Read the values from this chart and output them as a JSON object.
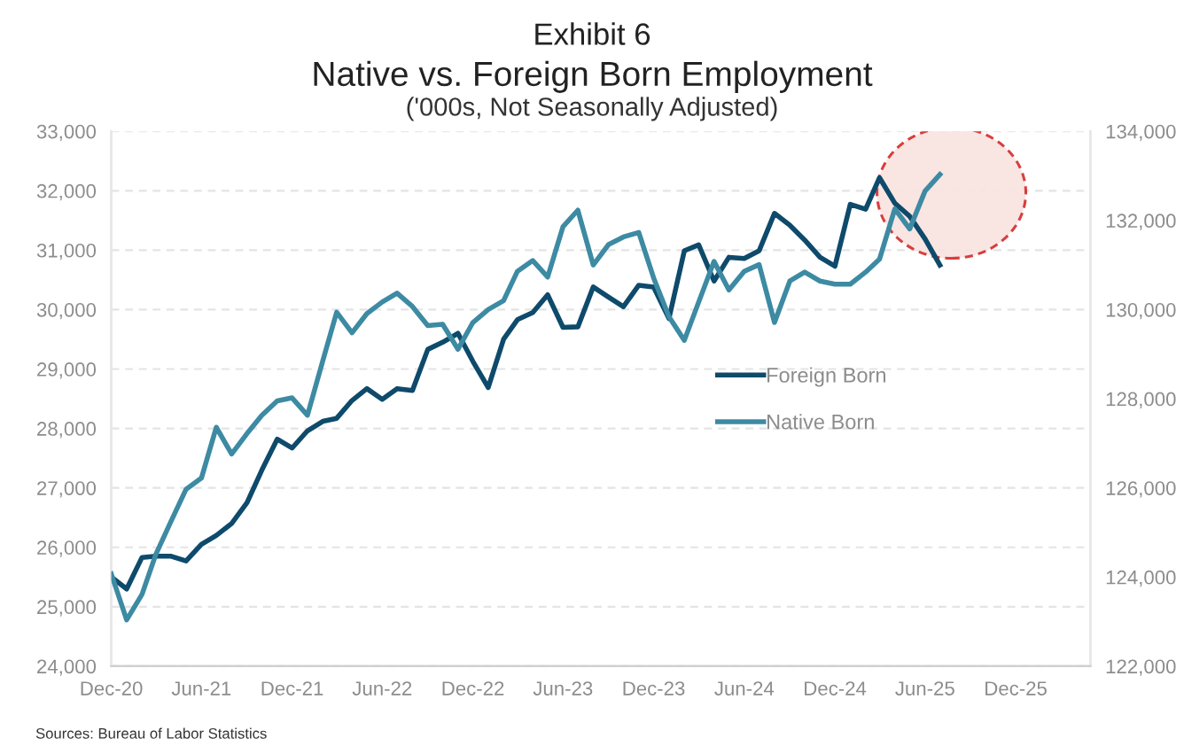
{
  "chart_data": {
    "type": "line",
    "title": "Exhibit 6",
    "subtitle": "Native vs. Foreign Born Employment",
    "annotations": [
      "('000s, Not Seasonally Adjusted)",
      "Sources: Bureau of Labor Statistics"
    ],
    "x": [
      "2020-12",
      "2021-01",
      "2021-02",
      "2021-03",
      "2021-04",
      "2021-05",
      "2021-06",
      "2021-07",
      "2021-08",
      "2021-09",
      "2021-10",
      "2021-11",
      "2021-12",
      "2022-01",
      "2022-02",
      "2022-03",
      "2022-04",
      "2022-05",
      "2022-06",
      "2022-07",
      "2022-08",
      "2022-09",
      "2022-10",
      "2022-11",
      "2022-12",
      "2023-01",
      "2023-02",
      "2023-03",
      "2023-04",
      "2023-05",
      "2023-06",
      "2023-07",
      "2023-08",
      "2023-09",
      "2023-10",
      "2023-11",
      "2023-12",
      "2024-01",
      "2024-02",
      "2024-03",
      "2024-04",
      "2024-05",
      "2024-06",
      "2024-07",
      "2024-08",
      "2024-09",
      "2024-10",
      "2024-11",
      "2024-12",
      "2025-01",
      "2025-02",
      "2025-03",
      "2025-04",
      "2025-05",
      "2025-06",
      "2025-07"
    ],
    "series": [
      {
        "name": "Foreign Born",
        "color": "#0e4a6b",
        "values": [
          25500,
          25300,
          25830,
          25850,
          25850,
          25770,
          26050,
          26200,
          26400,
          26750,
          27300,
          27820,
          27670,
          27960,
          28120,
          28170,
          28470,
          28670,
          28490,
          28670,
          28640,
          29330,
          29450,
          29600,
          29130,
          28690,
          29500,
          29830,
          29950,
          30250,
          29700,
          29710,
          30380,
          30210,
          30050,
          30410,
          30380,
          29850,
          30990,
          31090,
          30480,
          30880,
          30860,
          30990,
          31620,
          31420,
          31170,
          30880,
          30730,
          31770,
          31690,
          32220,
          31790,
          31570,
          31190,
          30750
        ]
      },
      {
        "name": "Native Born",
        "color": "#3d8aa3",
        "axis": "y2",
        "values": [
          124070,
          123040,
          123610,
          124510,
          125260,
          125970,
          126220,
          127360,
          126760,
          127220,
          127630,
          127950,
          128020,
          127630,
          128850,
          129940,
          129480,
          129910,
          130170,
          130370,
          130070,
          129640,
          129670,
          129110,
          129710,
          130000,
          130200,
          130860,
          131100,
          130730,
          131860,
          132230,
          131000,
          131460,
          131630,
          131730,
          130710,
          129840,
          129310,
          130170,
          131080,
          130440,
          130860,
          131010,
          129710,
          130640,
          130840,
          130640,
          130570,
          130570,
          130840,
          131130,
          132260,
          131810,
          132660,
          133030
        ]
      }
    ],
    "xlim": [
      "2020-12",
      "2026-05"
    ],
    "xticks": [
      {
        "value": "2020-12",
        "label": "Dec-20"
      },
      {
        "value": "2021-06",
        "label": "Jun-21"
      },
      {
        "value": "2021-12",
        "label": "Dec-21"
      },
      {
        "value": "2022-06",
        "label": "Jun-22"
      },
      {
        "value": "2022-12",
        "label": "Dec-22"
      },
      {
        "value": "2023-06",
        "label": "Jun-23"
      },
      {
        "value": "2023-12",
        "label": "Dec-23"
      },
      {
        "value": "2024-06",
        "label": "Jun-24"
      },
      {
        "value": "2024-12",
        "label": "Dec-24"
      },
      {
        "value": "2025-06",
        "label": "Jun-25"
      },
      {
        "value": "2025-12",
        "label": "Dec-25"
      }
    ],
    "ylim": [
      24000,
      33000
    ],
    "yticks": [
      {
        "value": 24000,
        "label": "24,000"
      },
      {
        "value": 25000,
        "label": "25,000"
      },
      {
        "value": 26000,
        "label": "26,000"
      },
      {
        "value": 27000,
        "label": "27,000"
      },
      {
        "value": 28000,
        "label": "28,000"
      },
      {
        "value": 29000,
        "label": "29,000"
      },
      {
        "value": 30000,
        "label": "30,000"
      },
      {
        "value": 31000,
        "label": "31,000"
      },
      {
        "value": 32000,
        "label": "32,000"
      },
      {
        "value": 33000,
        "label": "33,000"
      }
    ],
    "y2lim": [
      122000,
      134000
    ],
    "y2ticks": [
      {
        "value": 122000,
        "label": "122,000"
      },
      {
        "value": 124000,
        "label": "124,000"
      },
      {
        "value": 126000,
        "label": "126,000"
      },
      {
        "value": 128000,
        "label": "128,000"
      },
      {
        "value": 130000,
        "label": "130,000"
      },
      {
        "value": 132000,
        "label": "132,000"
      },
      {
        "value": 134000,
        "label": "134,000"
      }
    ],
    "grid": "y",
    "legend": "right",
    "marker": "none",
    "line_style": "solid"
  }
}
